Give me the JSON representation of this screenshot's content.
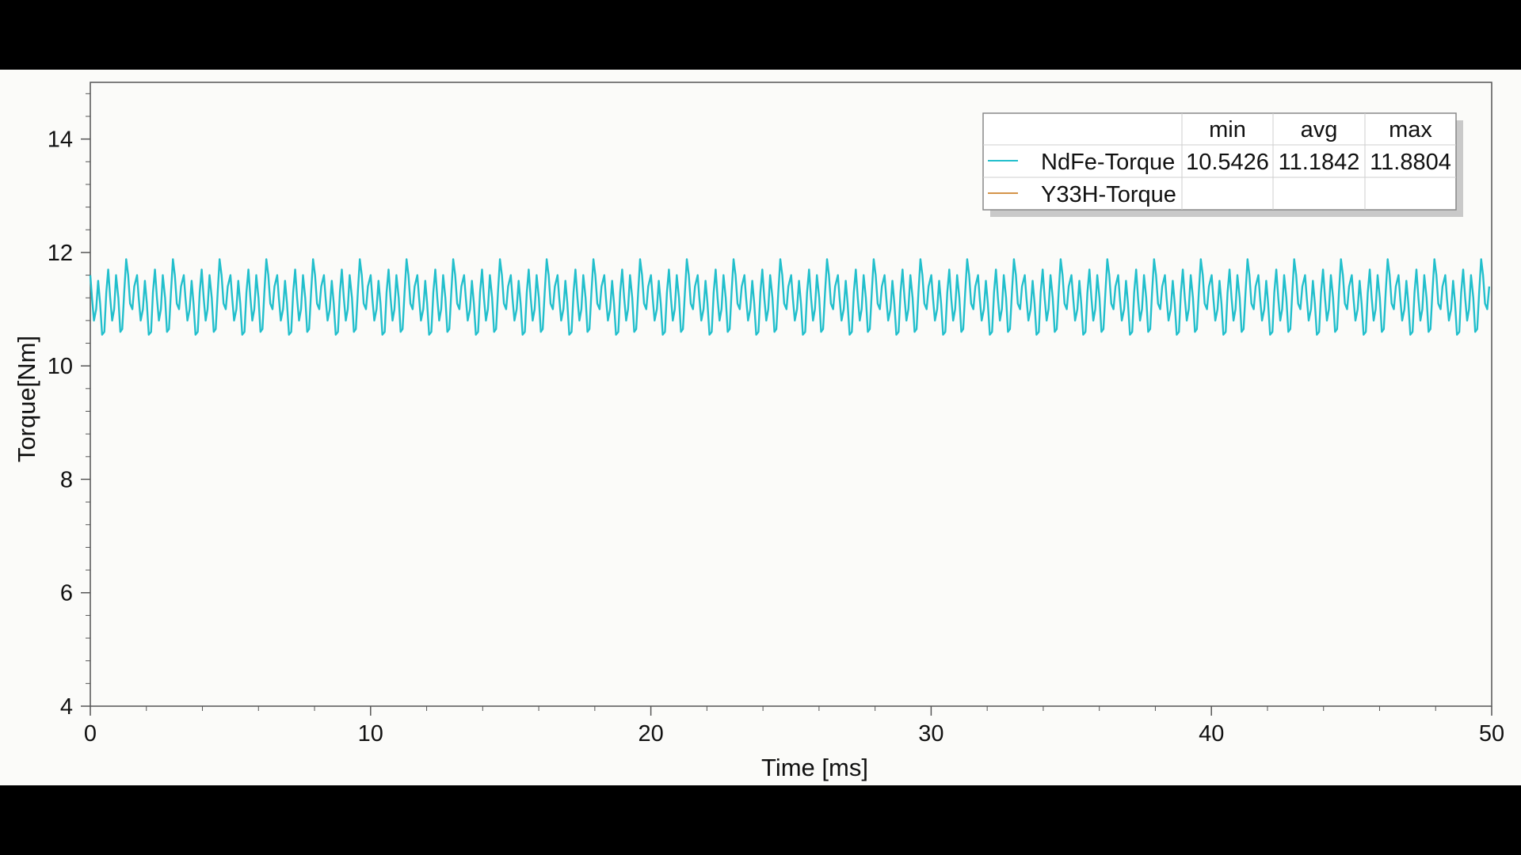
{
  "colors": {
    "letterbox": "#000000",
    "plot_background": "#fbfbf9",
    "axis": "#555555",
    "ndfe": "#22bfcc",
    "y33h": "#d4944a",
    "legend_border": "#888888",
    "legend_shadow": "#c9c9c9"
  },
  "chart_data": {
    "type": "line",
    "title": "",
    "xlabel": "Time [ms]",
    "ylabel": "Torque[Nm]",
    "xlim": [
      0,
      50
    ],
    "ylim": [
      4,
      15
    ],
    "x_ticks": [
      0,
      10,
      20,
      30,
      40,
      50
    ],
    "x_tick_labels": [
      "0",
      "10",
      "20",
      "30",
      "40",
      "50"
    ],
    "y_ticks": [
      4,
      6,
      8,
      10,
      12,
      14
    ],
    "y_tick_labels": [
      "4",
      "6",
      "8",
      "10",
      "12",
      "14"
    ],
    "legend_position": "top-right",
    "legend_columns": [
      "min",
      "avg",
      "max"
    ],
    "series": [
      {
        "name": "NdFe-Torque",
        "min": "10.5426",
        "avg": "11.1842",
        "max": "11.8804",
        "color": "#22bfcc",
        "period_ms": 1.667,
        "waveform": [
          [
            0.0,
            11.6
          ],
          [
            0.06,
            11.2
          ],
          [
            0.13,
            10.8
          ],
          [
            0.21,
            11.0
          ],
          [
            0.28,
            11.5
          ],
          [
            0.35,
            11.1
          ],
          [
            0.42,
            10.55
          ],
          [
            0.5,
            10.6
          ],
          [
            0.57,
            11.3
          ],
          [
            0.64,
            11.7
          ],
          [
            0.71,
            11.2
          ],
          [
            0.78,
            10.8
          ],
          [
            0.85,
            11.0
          ],
          [
            0.92,
            11.6
          ],
          [
            1.0,
            11.2
          ],
          [
            1.07,
            10.6
          ],
          [
            1.14,
            10.65
          ],
          [
            1.21,
            11.3
          ],
          [
            1.28,
            11.88
          ],
          [
            1.35,
            11.6
          ],
          [
            1.42,
            11.1
          ],
          [
            1.5,
            11.0
          ],
          [
            1.57,
            11.4
          ],
          [
            1.667,
            11.6
          ]
        ]
      },
      {
        "name": "Y33H-Torque",
        "color": "#d4944a",
        "values": []
      }
    ]
  }
}
